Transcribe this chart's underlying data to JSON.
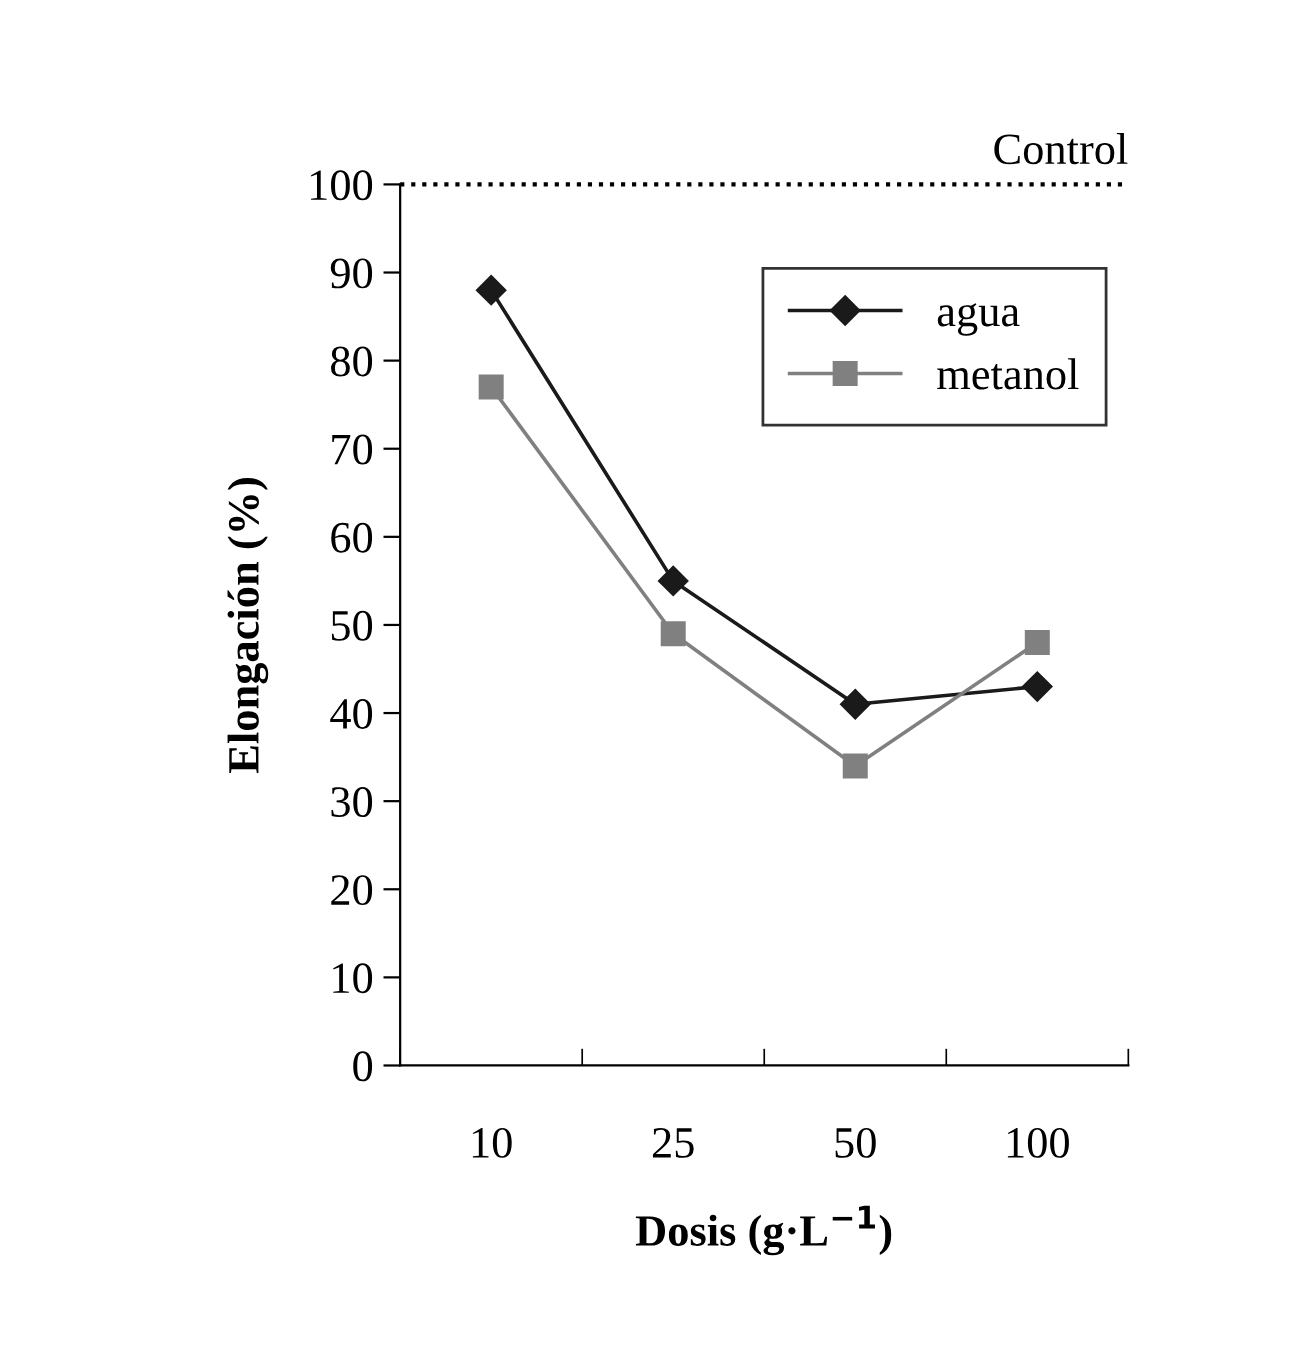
{
  "chart_data": {
    "type": "line",
    "xlabel": "Dosis (g·L$^{−1}$)",
    "ylabel": "Elongación (%)",
    "categories": [
      "10",
      "25",
      "50",
      "100"
    ],
    "series": [
      {
        "name": "agua",
        "color": "#1a1a1a",
        "marker": "diamond",
        "values": [
          88,
          55,
          41,
          43
        ]
      },
      {
        "name": "metanol",
        "color": "#808080",
        "marker": "square",
        "values": [
          77,
          49,
          34,
          48
        ]
      }
    ],
    "ylim": [
      0,
      100
    ],
    "yticks": [
      0,
      10,
      20,
      30,
      40,
      50,
      60,
      70,
      80,
      90,
      100
    ],
    "ref_lines": [
      {
        "axis": "y",
        "value": 100,
        "label": "Control",
        "color": "#000000",
        "line_style": "dotted"
      }
    ],
    "grid": false,
    "legend": "top right",
    "line_style": "solid"
  }
}
